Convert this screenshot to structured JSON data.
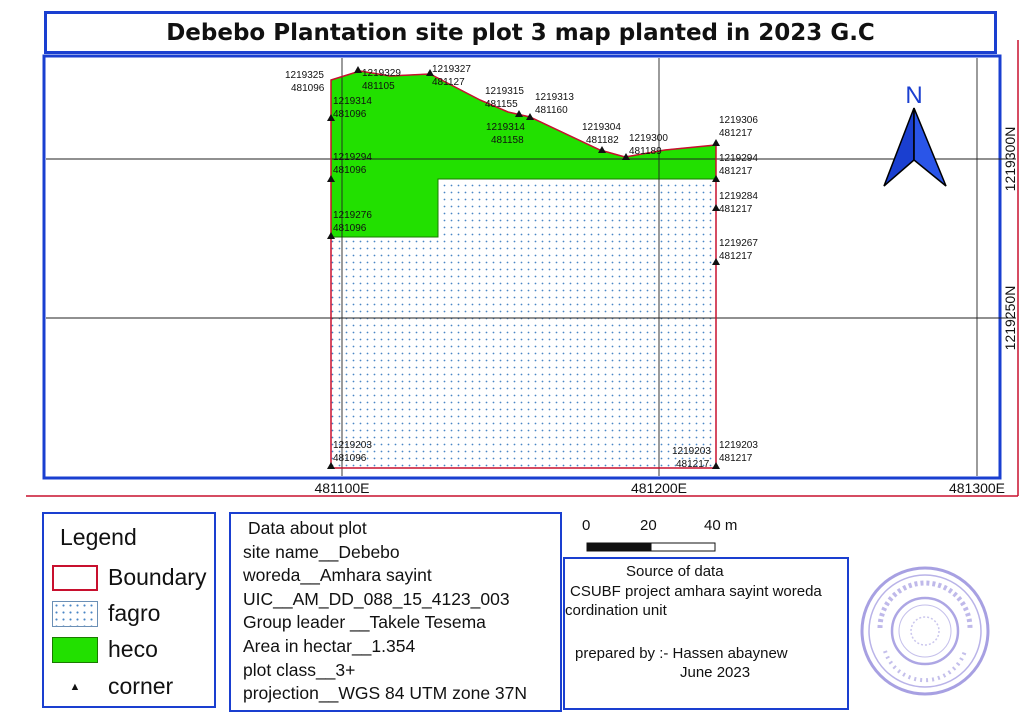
{
  "title": "Debebo Plantation site plot 3 map planted in 2023 G.C",
  "map": {
    "x_ticks": [
      "481100E",
      "481200E",
      "481300E"
    ],
    "y_ticks": [
      "1219300N",
      "1219250N"
    ],
    "north_label": "N",
    "corners": [
      {
        "northing": "1219325",
        "easting": "481096"
      },
      {
        "northing": "1219329",
        "easting": "481105"
      },
      {
        "northing": "1219327",
        "easting": "481127"
      },
      {
        "northing": "1219315",
        "easting": "481155"
      },
      {
        "northing": "1219313",
        "easting": "481160"
      },
      {
        "northing": "1219314",
        "easting": "481096"
      },
      {
        "northing": "1219314",
        "easting": "481158"
      },
      {
        "northing": "1219304",
        "easting": "481182"
      },
      {
        "northing": "1219300",
        "easting": "481189"
      },
      {
        "northing": "1219306",
        "easting": "481217"
      },
      {
        "northing": "1219294",
        "easting": "481096"
      },
      {
        "northing": "1219294",
        "easting": "481217"
      },
      {
        "northing": "1219284",
        "easting": "481217"
      },
      {
        "northing": "1219276",
        "easting": "481096"
      },
      {
        "northing": "1219267",
        "easting": "481217"
      },
      {
        "northing": "1219203",
        "easting": "481096"
      },
      {
        "northing": "1219203",
        "easting": "481217"
      },
      {
        "northing": "1219203",
        "easting": "481217"
      }
    ],
    "colors": {
      "boundary": "#c8102e",
      "heco": "#22e000",
      "fagro_dots": "#4a86c5",
      "frame": "#1a3fd0"
    }
  },
  "legend": {
    "title": "Legend",
    "items": [
      {
        "label": "Boundary",
        "symbol": "red-outline-rect"
      },
      {
        "label": "fagro",
        "symbol": "blue-dot-pattern"
      },
      {
        "label": "heco",
        "symbol": "green-fill"
      },
      {
        "label": "corner",
        "symbol": "black-triangle"
      }
    ]
  },
  "plot_info": {
    "heading": "Data about plot",
    "lines": [
      "site name__Debebo",
      "woreda__Amhara sayint",
      "UIC__AM_DD_088_15_4123_003",
      "Group leader __Takele Tesema",
      "Area in hectar__1.354",
      "plot class__3+",
      "projection__WGS 84 UTM zone 37N"
    ]
  },
  "scalebar": {
    "labels": [
      "0",
      "20",
      "40 m"
    ]
  },
  "source": {
    "heading": "Source of data",
    "line1": "CSUBF project amhara sayint woreda",
    "line2": "cordination unit",
    "prepared_by": "prepared by :- Hassen abaynew",
    "date": "June 2023"
  }
}
